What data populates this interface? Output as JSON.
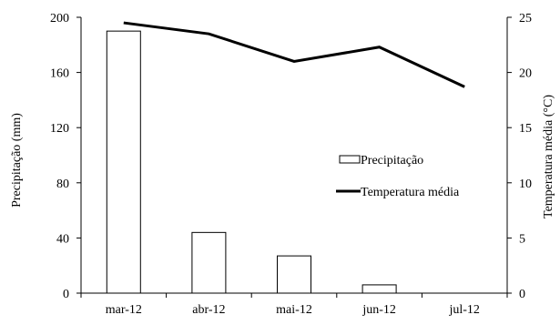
{
  "chart_data": {
    "type": "bar",
    "categories": [
      "mar-12",
      "abr-12",
      "mai-12",
      "jun-12",
      "jul-12"
    ],
    "series": [
      {
        "name": "Precipitação",
        "type": "bar",
        "axis": "left",
        "values": [
          190,
          44,
          27,
          6,
          0
        ]
      },
      {
        "name": "Temperatura média",
        "type": "line",
        "axis": "right",
        "values": [
          24.5,
          23.5,
          21.0,
          22.3,
          18.7
        ]
      }
    ],
    "ylabel": "Precipitação (mm)",
    "y2label": "Temperatura média (°C)",
    "ylim": [
      0,
      200
    ],
    "yticks": [
      0,
      40,
      80,
      120,
      160,
      200
    ],
    "y2lim": [
      0,
      25
    ],
    "y2ticks": [
      0,
      5,
      10,
      15,
      20,
      25
    ],
    "legend_position": "center-right",
    "grid": false,
    "colors": {
      "bar_fill": "#ffffff",
      "bar_stroke": "#000000",
      "line": "#000000"
    }
  }
}
